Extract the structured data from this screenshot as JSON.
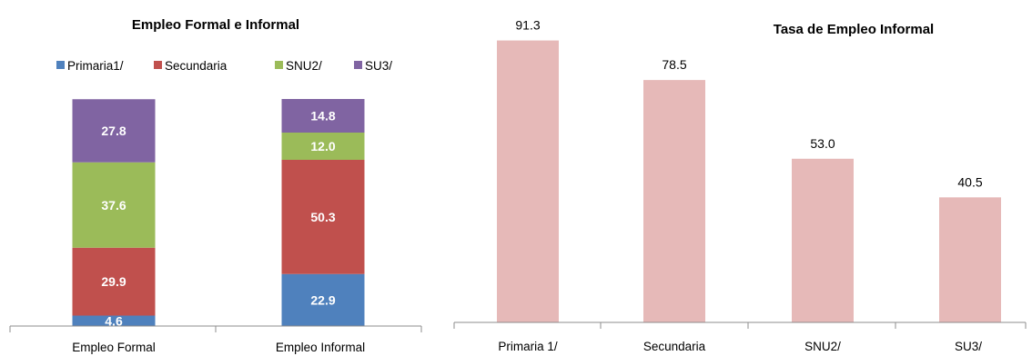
{
  "chart_data": [
    {
      "type": "bar",
      "stacked": true,
      "title": "Empleo  Formal e Informal",
      "categories": [
        "Empleo Formal",
        "Empleo Informal"
      ],
      "series": [
        {
          "name": "Primaria1/",
          "color": "#4f81bd",
          "values": [
            4.6,
            22.9
          ]
        },
        {
          "name": "Secundaria",
          "color": "#c0504d",
          "values": [
            29.9,
            50.3
          ]
        },
        {
          "name": "SNU2/",
          "color": "#9bbb59",
          "values": [
            37.6,
            12.0
          ]
        },
        {
          "name": "SU3/",
          "color": "#8064a2",
          "values": [
            27.8,
            14.8
          ]
        }
      ],
      "ylim": [
        0,
        100
      ],
      "legend": "top",
      "grid": false,
      "value_labels": [
        "4.6",
        "22.9",
        "29.9",
        "50.3",
        "37.6",
        "12.0",
        "27.8",
        "14.8"
      ]
    },
    {
      "type": "bar",
      "title": "Tasa de Empleo Informal",
      "categories": [
        "Primaria 1/",
        "Secundaria",
        "SNU2/",
        "SU3/"
      ],
      "values": [
        91.3,
        78.5,
        53.0,
        40.5
      ],
      "value_labels": [
        "91.3",
        "78.5",
        "53.0",
        "40.5"
      ],
      "color": "#e6b9b8",
      "ylim": [
        0,
        100
      ],
      "grid": false
    }
  ]
}
